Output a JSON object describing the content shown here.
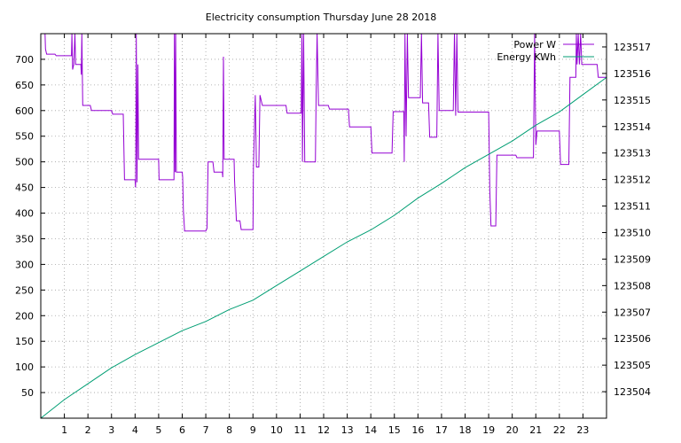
{
  "chart_data": {
    "type": "line",
    "title": "Electricity consumption Thursday June 28 2018",
    "xlabel": "",
    "ylabel": "",
    "y2label": "",
    "grid": true,
    "legend_position": "top-right",
    "x_ticks": [
      "1",
      "2",
      "3",
      "4",
      "5",
      "6",
      "7",
      "8",
      "9",
      "10",
      "11",
      "12",
      "13",
      "14",
      "15",
      "16",
      "17",
      "18",
      "19",
      "20",
      "21",
      "22",
      "23"
    ],
    "xlim": [
      0,
      24
    ],
    "y_ticks": [
      "50",
      "100",
      "150",
      "200",
      "250",
      "300",
      "350",
      "400",
      "450",
      "500",
      "550",
      "600",
      "650",
      "700"
    ],
    "ylim": [
      0,
      750
    ],
    "y2_ticks": [
      "123504",
      "123505",
      "123506",
      "123507",
      "123508",
      "123509",
      "123510",
      "123511",
      "123512",
      "123513",
      "123514",
      "123515",
      "123516",
      "123517"
    ],
    "y2lim": [
      123503.0,
      123517.5
    ],
    "colors": {
      "power": "#9400d3",
      "energy": "#009e73",
      "grid": "#a0a0a0",
      "axis": "#000000"
    },
    "series": [
      {
        "name": "Power W",
        "axis": "left",
        "color": "#9400d3",
        "points": [
          [
            0.0,
            750
          ],
          [
            0.18,
            750
          ],
          [
            0.2,
            720
          ],
          [
            0.25,
            710
          ],
          [
            0.6,
            710
          ],
          [
            0.65,
            707
          ],
          [
            1.3,
            707
          ],
          [
            1.32,
            750
          ],
          [
            1.35,
            680
          ],
          [
            1.4,
            690
          ],
          [
            1.45,
            750
          ],
          [
            1.48,
            690
          ],
          [
            1.7,
            690
          ],
          [
            1.72,
            670
          ],
          [
            1.74,
            750
          ],
          [
            1.78,
            610
          ],
          [
            2.1,
            610
          ],
          [
            2.15,
            600
          ],
          [
            3.0,
            600
          ],
          [
            3.05,
            593
          ],
          [
            3.5,
            593
          ],
          [
            3.55,
            465
          ],
          [
            4.0,
            465
          ],
          [
            4.02,
            450
          ],
          [
            4.05,
            750
          ],
          [
            4.08,
            460
          ],
          [
            4.12,
            690
          ],
          [
            4.15,
            505
          ],
          [
            5.0,
            505
          ],
          [
            5.02,
            465
          ],
          [
            5.65,
            465
          ],
          [
            5.67,
            750
          ],
          [
            5.7,
            480
          ],
          [
            5.72,
            750
          ],
          [
            5.75,
            480
          ],
          [
            6.0,
            480
          ],
          [
            6.02,
            470
          ],
          [
            6.05,
            405
          ],
          [
            6.1,
            365
          ],
          [
            7.0,
            365
          ],
          [
            7.05,
            370
          ],
          [
            7.1,
            500
          ],
          [
            7.3,
            500
          ],
          [
            7.35,
            480
          ],
          [
            7.7,
            480
          ],
          [
            7.72,
            470
          ],
          [
            7.75,
            705
          ],
          [
            7.78,
            505
          ],
          [
            8.2,
            505
          ],
          [
            8.22,
            465
          ],
          [
            8.3,
            385
          ],
          [
            8.45,
            385
          ],
          [
            8.5,
            368
          ],
          [
            9.0,
            368
          ],
          [
            9.02,
            490
          ],
          [
            9.1,
            630
          ],
          [
            9.15,
            490
          ],
          [
            9.25,
            490
          ],
          [
            9.3,
            630
          ],
          [
            9.4,
            610
          ],
          [
            10.4,
            610
          ],
          [
            10.45,
            595
          ],
          [
            11.05,
            595
          ],
          [
            11.08,
            750
          ],
          [
            11.1,
            500
          ],
          [
            11.15,
            750
          ],
          [
            11.2,
            500
          ],
          [
            11.65,
            500
          ],
          [
            11.68,
            630
          ],
          [
            11.72,
            750
          ],
          [
            11.78,
            610
          ],
          [
            12.2,
            610
          ],
          [
            12.25,
            603
          ],
          [
            13.05,
            603
          ],
          [
            13.1,
            568
          ],
          [
            14.0,
            568
          ],
          [
            14.05,
            517
          ],
          [
            14.9,
            517
          ],
          [
            14.95,
            598
          ],
          [
            15.4,
            598
          ],
          [
            15.42,
            500
          ],
          [
            15.45,
            750
          ],
          [
            15.5,
            550
          ],
          [
            15.55,
            750
          ],
          [
            15.6,
            625
          ],
          [
            16.1,
            625
          ],
          [
            16.15,
            750
          ],
          [
            16.2,
            615
          ],
          [
            16.45,
            615
          ],
          [
            16.5,
            548
          ],
          [
            16.8,
            548
          ],
          [
            16.85,
            750
          ],
          [
            16.9,
            600
          ],
          [
            17.5,
            600
          ],
          [
            17.55,
            750
          ],
          [
            17.6,
            590
          ],
          [
            17.65,
            750
          ],
          [
            17.7,
            597
          ],
          [
            19.0,
            597
          ],
          [
            19.05,
            443
          ],
          [
            19.1,
            375
          ],
          [
            19.3,
            375
          ],
          [
            19.35,
            513
          ],
          [
            20.15,
            513
          ],
          [
            20.2,
            508
          ],
          [
            20.9,
            508
          ],
          [
            20.95,
            750
          ],
          [
            21.0,
            533
          ],
          [
            21.05,
            560
          ],
          [
            22.0,
            560
          ],
          [
            22.05,
            495
          ],
          [
            22.4,
            495
          ],
          [
            22.45,
            665
          ],
          [
            22.7,
            665
          ],
          [
            22.72,
            750
          ],
          [
            22.75,
            690
          ],
          [
            22.8,
            750
          ],
          [
            22.85,
            690
          ],
          [
            22.9,
            750
          ],
          [
            22.95,
            690
          ],
          [
            23.6,
            690
          ],
          [
            23.65,
            665
          ],
          [
            24.0,
            665
          ]
        ]
      },
      {
        "name": "Energy KWh",
        "axis": "right",
        "color": "#009e73",
        "points": [
          [
            0.0,
            123503.0
          ],
          [
            1.0,
            123503.7
          ],
          [
            2.0,
            123504.3
          ],
          [
            3.0,
            123504.9
          ],
          [
            4.0,
            123505.4
          ],
          [
            5.0,
            123505.85
          ],
          [
            6.0,
            123506.3
          ],
          [
            7.0,
            123506.65
          ],
          [
            8.0,
            123507.1
          ],
          [
            9.0,
            123507.45
          ],
          [
            10.0,
            123508.0
          ],
          [
            11.0,
            123508.55
          ],
          [
            12.0,
            123509.1
          ],
          [
            13.0,
            123509.65
          ],
          [
            14.0,
            123510.1
          ],
          [
            15.0,
            123510.65
          ],
          [
            16.0,
            123511.3
          ],
          [
            17.0,
            123511.85
          ],
          [
            18.0,
            123512.45
          ],
          [
            19.0,
            123512.95
          ],
          [
            20.0,
            123513.45
          ],
          [
            21.0,
            123514.05
          ],
          [
            22.0,
            123514.55
          ],
          [
            23.0,
            123515.2
          ],
          [
            24.0,
            123515.85
          ]
        ]
      }
    ]
  }
}
